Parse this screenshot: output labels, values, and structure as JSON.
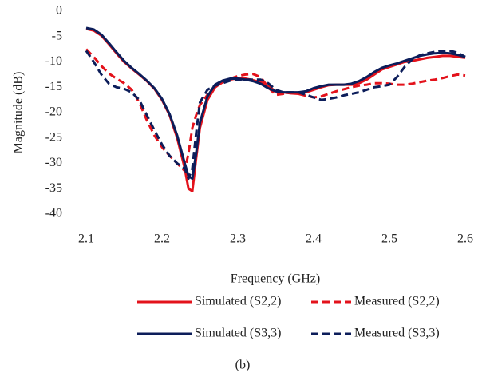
{
  "chart_data": {
    "type": "line",
    "xlabel": "Frequency (GHz)",
    "ylabel": "Magnitude (dB)",
    "caption": "(b)",
    "xlim": [
      2.1,
      2.6
    ],
    "xticks": [
      2.1,
      2.2,
      2.3,
      2.4,
      2.5,
      2.6
    ],
    "ylim": [
      -40,
      0
    ],
    "yticks": [
      0,
      -5,
      -10,
      -15,
      -20,
      -25,
      -30,
      -35,
      -40
    ],
    "grid": false,
    "x": [
      2.1,
      2.11,
      2.12,
      2.13,
      2.14,
      2.15,
      2.16,
      2.17,
      2.18,
      2.19,
      2.2,
      2.21,
      2.22,
      2.23,
      2.235,
      2.24,
      2.245,
      2.25,
      2.26,
      2.27,
      2.28,
      2.29,
      2.3,
      2.31,
      2.32,
      2.33,
      2.34,
      2.35,
      2.36,
      2.37,
      2.38,
      2.39,
      2.4,
      2.41,
      2.42,
      2.43,
      2.44,
      2.45,
      2.46,
      2.47,
      2.48,
      2.49,
      2.5,
      2.51,
      2.52,
      2.53,
      2.54,
      2.55,
      2.56,
      2.57,
      2.58,
      2.59,
      2.6
    ],
    "series": [
      {
        "name": "Simulated (S2,2)",
        "color": "#e3121b",
        "dash": false,
        "values": [
          -3.5,
          -3.8,
          -4.8,
          -6.5,
          -8.3,
          -10,
          -11.3,
          -12.5,
          -13.8,
          -15.3,
          -17.5,
          -20.5,
          -25,
          -31,
          -35,
          -35.5,
          -29,
          -23,
          -17.5,
          -15,
          -14,
          -13.5,
          -13.2,
          -13.3,
          -13.6,
          -14,
          -14.8,
          -15.8,
          -16,
          -16.2,
          -16.3,
          -16,
          -15.5,
          -15,
          -14.6,
          -14.5,
          -14.5,
          -14.5,
          -14.2,
          -13.5,
          -12.5,
          -11.5,
          -11,
          -10.5,
          -10,
          -9.8,
          -9.5,
          -9.2,
          -9,
          -8.8,
          -8.8,
          -9,
          -9.2
        ]
      },
      {
        "name": "Measured (S2,2)",
        "color": "#e3121b",
        "dash": true,
        "values": [
          -7.5,
          -9,
          -10.8,
          -12.3,
          -13.3,
          -14.2,
          -15.5,
          -18,
          -21.5,
          -24.5,
          -26.8,
          -28.5,
          -30,
          -31.5,
          -28,
          -23,
          -20.5,
          -18.5,
          -16.5,
          -15,
          -14,
          -13.3,
          -12.8,
          -12.5,
          -12.4,
          -13,
          -15,
          -16.5,
          -16.3,
          -16,
          -16.3,
          -16.7,
          -17,
          -16.8,
          -16.3,
          -15.8,
          -15.4,
          -15,
          -14.7,
          -14.5,
          -14.2,
          -14.2,
          -14.3,
          -14.5,
          -14.5,
          -14.3,
          -14,
          -13.7,
          -13.5,
          -13.2,
          -12.8,
          -12.5,
          -12.7
        ]
      },
      {
        "name": "Simulated (S3,3)",
        "color": "#0c1d5a",
        "dash": false,
        "values": [
          -3.3,
          -3.6,
          -4.6,
          -6.3,
          -8.1,
          -9.8,
          -11.2,
          -12.4,
          -13.7,
          -15.2,
          -17.3,
          -20.3,
          -24.5,
          -30,
          -32.5,
          -33,
          -28,
          -22,
          -16.8,
          -14.5,
          -13.7,
          -13.3,
          -13.3,
          -13.5,
          -13.8,
          -14.3,
          -15.2,
          -15.8,
          -16,
          -16,
          -16,
          -15.8,
          -15.2,
          -14.8,
          -14.5,
          -14.5,
          -14.5,
          -14.3,
          -13.8,
          -13,
          -12,
          -11.2,
          -10.7,
          -10.3,
          -9.8,
          -9.3,
          -8.8,
          -8.5,
          -8.3,
          -8.2,
          -8.3,
          -8.6,
          -9
        ]
      },
      {
        "name": "Measured (S3,3)",
        "color": "#0c1d5a",
        "dash": true,
        "values": [
          -7.8,
          -10,
          -12.5,
          -14.3,
          -15,
          -15.3,
          -16,
          -17.5,
          -20.5,
          -23.5,
          -26.3,
          -28.5,
          -30,
          -31,
          -33,
          -31,
          -24,
          -18,
          -15.5,
          -14.7,
          -14.2,
          -13.7,
          -13.5,
          -13.5,
          -13.5,
          -13.5,
          -14.2,
          -15.5,
          -16,
          -16,
          -16,
          -16.5,
          -17,
          -17.5,
          -17.3,
          -17,
          -16.6,
          -16.3,
          -16,
          -15.5,
          -15,
          -14.8,
          -14.5,
          -13,
          -11,
          -9.5,
          -8.7,
          -8.3,
          -8,
          -7.8,
          -7.8,
          -8.2,
          -9
        ]
      }
    ]
  }
}
